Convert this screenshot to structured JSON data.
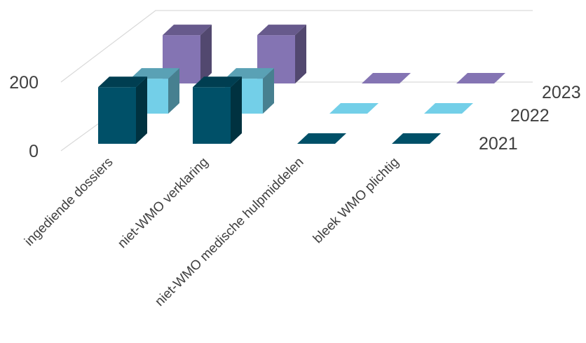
{
  "chart_data": {
    "type": "bar",
    "subtype": "3d-column",
    "title": "",
    "xlabel": "",
    "ylabel": "",
    "categories": [
      "ingediende dossiers",
      "niet-WMO verklaring",
      "niet-WMO medische hulpmiddelen",
      "bleek WMO plichtig"
    ],
    "series": [
      {
        "name": "2021",
        "values": [
          170,
          170,
          0,
          0
        ],
        "color": "#005068"
      },
      {
        "name": "2022",
        "values": [
          105,
          105,
          0,
          0
        ],
        "color": "#73cfe8"
      },
      {
        "name": "2023",
        "values": [
          145,
          145,
          0,
          0
        ],
        "color": "#8474b3"
      }
    ],
    "yticks": [
      0,
      200
    ],
    "ylim": [
      0,
      400
    ],
    "grid": true,
    "legend": "series labels on depth axis (right)"
  }
}
